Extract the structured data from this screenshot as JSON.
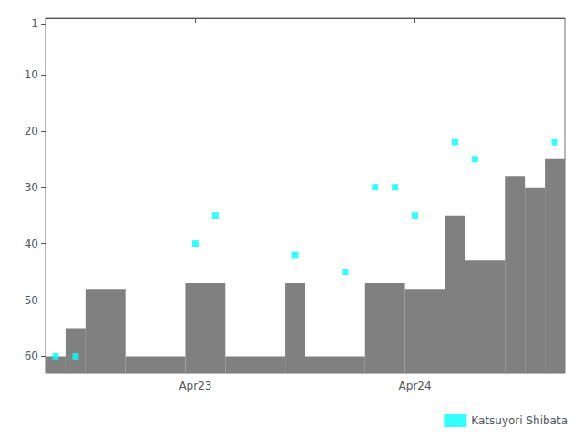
{
  "chart_data": {
    "type": "scatter",
    "xlim": [
      0,
      26
    ],
    "xticks": [
      {
        "value": 7.5,
        "label": "Apr23"
      },
      {
        "value": 18.5,
        "label": "Apr24"
      }
    ],
    "ylim": [
      63,
      0
    ],
    "yticks": [
      1,
      10,
      20,
      30,
      40,
      50,
      60
    ],
    "legend": "lower right",
    "series": [
      {
        "type": "area",
        "color": "#808080",
        "x_start": [
          0,
          1,
          2,
          4,
          7,
          9,
          12,
          13,
          16,
          18,
          20,
          21,
          23,
          24,
          25
        ],
        "x_end": [
          1,
          2,
          4,
          7,
          9,
          12,
          13,
          16,
          18,
          20,
          21,
          23,
          24,
          25,
          26
        ],
        "values": [
          60,
          55,
          48,
          60,
          47,
          60,
          47,
          60,
          47,
          48,
          35,
          43,
          28,
          30,
          25
        ]
      },
      {
        "type": "scatter",
        "name": "Katsuyori Shibata",
        "color": "#00ffff",
        "marker": "square",
        "x": [
          0.5,
          1.5,
          7.5,
          8.5,
          12.5,
          15.0,
          16.5,
          17.5,
          18.5,
          20.5,
          21.5,
          25.5
        ],
        "values": [
          60,
          60,
          40,
          35,
          42,
          45,
          30,
          30,
          35,
          22,
          25,
          22
        ]
      }
    ]
  }
}
